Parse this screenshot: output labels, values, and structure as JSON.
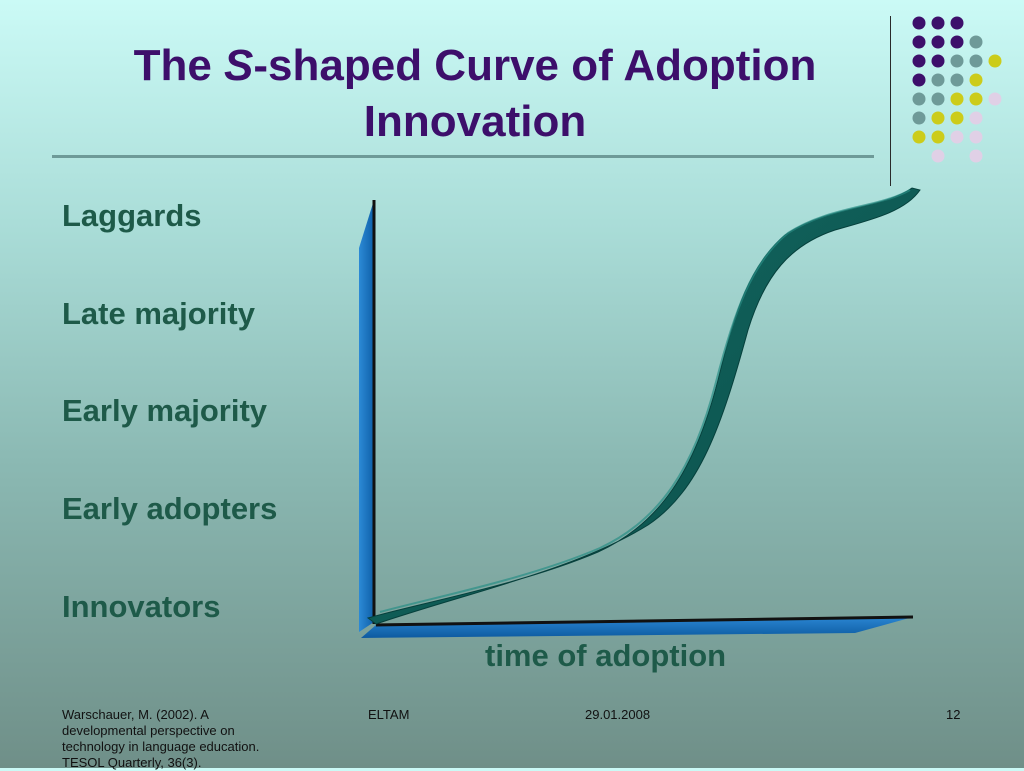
{
  "title": {
    "prefix": "The ",
    "italic": "S",
    "rest": "-shaped Curve of Adoption",
    "line2": "Innovation"
  },
  "stages": [
    "Laggards",
    "Late majority",
    "Early majority",
    "Early adopters",
    "Innovators"
  ],
  "x_axis_label": "time of adoption",
  "footer": {
    "citation": "Warschauer, M. (2002). A developmental perspective on technology in language education. TESOL Quarterly, 36(3).",
    "org": "ELTAM",
    "date": "29.01.2008",
    "page": "12"
  },
  "colors": {
    "title": "#3d0f6b",
    "labels": "#1e5a49",
    "curve": "#0f5a54",
    "axis": "#1a6fc0"
  }
}
